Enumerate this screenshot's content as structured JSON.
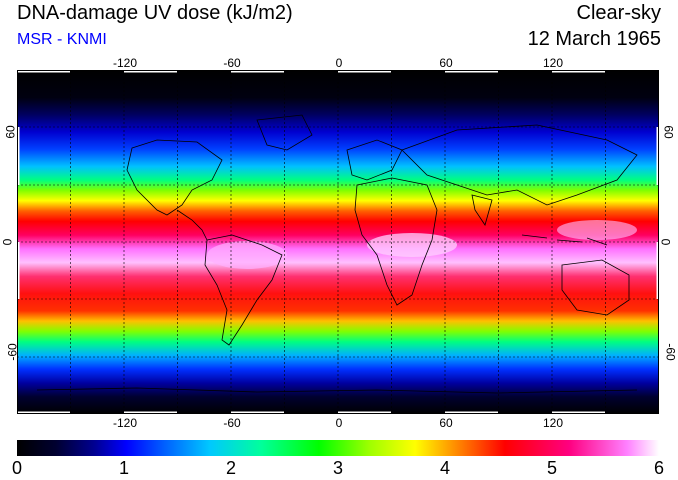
{
  "header": {
    "title": "DNA-damage UV dose (kJ/m2)",
    "source": "MSR - KNMI",
    "sky_condition": "Clear-sky",
    "date": "12 March 1965"
  },
  "map": {
    "longitude_ticks": [
      "-120",
      "-60",
      "0",
      "60",
      "120"
    ],
    "latitude_ticks": [
      "60",
      "0",
      "-60"
    ]
  },
  "colorbar": {
    "labels": [
      "0",
      "1",
      "2",
      "3",
      "4",
      "5",
      "6"
    ]
  }
}
